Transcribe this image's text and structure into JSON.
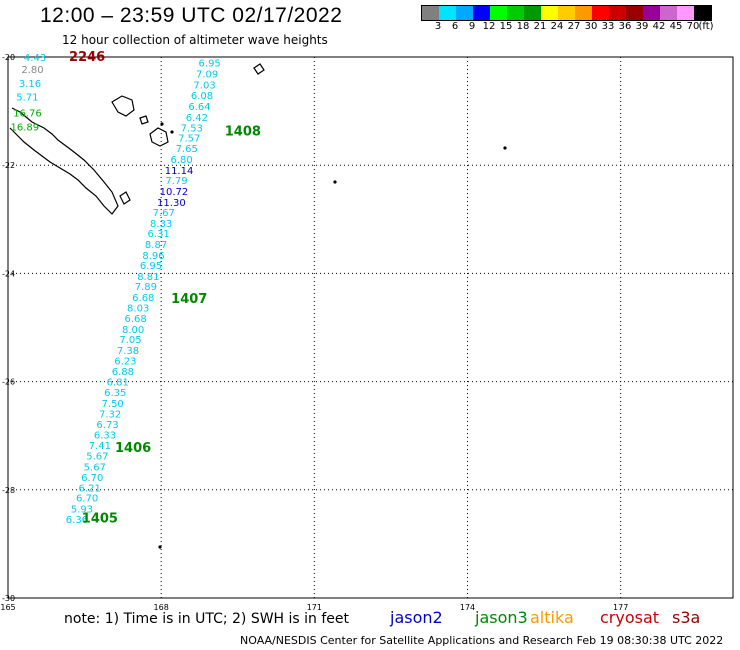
{
  "title": "12:00 – 23:59 UTC 02/17/2022",
  "subtitle": "12 hour collection of altimeter wave heights",
  "scale": {
    "colors": [
      "#808080",
      "#00e5ff",
      "#00a8ff",
      "#0000ff",
      "#00ff00",
      "#00cc00",
      "#009900",
      "#ffff00",
      "#ffcc00",
      "#ff9900",
      "#ff0000",
      "#cc0000",
      "#990000",
      "#990099",
      "#cc66cc",
      "#ff99ff",
      "#000000"
    ],
    "labels": [
      "3",
      "6",
      "9",
      "12",
      "15",
      "18",
      "21",
      "24",
      "27",
      "30",
      "33",
      "36",
      "39",
      "42",
      "45",
      "70",
      "(ft)"
    ]
  },
  "map": {
    "lat_labels": [
      "-20",
      "-22",
      "-24",
      "-26",
      "-28",
      "-30"
    ],
    "lon_labels": [
      "165",
      "168",
      "171",
      "174",
      "177"
    ],
    "lat_range": [
      -30,
      -20
    ],
    "lon_range": [
      165,
      179.2
    ]
  },
  "observations": [
    {
      "value": "4.43",
      "lat": -20.07,
      "lon": 165.53,
      "color": "#00ccee"
    },
    {
      "value": "2.80",
      "lat": -20.3,
      "lon": 165.48,
      "color": "#888888"
    },
    {
      "value": "3.16",
      "lat": -20.55,
      "lon": 165.43,
      "color": "#00ccee"
    },
    {
      "value": "5.71",
      "lat": -20.8,
      "lon": 165.38,
      "color": "#00ccee"
    },
    {
      "value": "16.76",
      "lat": -21.1,
      "lon": 165.38,
      "color": "#00aa00"
    },
    {
      "value": "16.89",
      "lat": -21.36,
      "lon": 165.33,
      "color": "#00aa00"
    },
    {
      "value": "6.95",
      "lat": -20.18,
      "lon": 168.95,
      "color": "#00ccee"
    },
    {
      "value": "7.09",
      "lat": -20.38,
      "lon": 168.9,
      "color": "#00ccee"
    },
    {
      "value": "7.03",
      "lat": -20.58,
      "lon": 168.85,
      "color": "#00ccee"
    },
    {
      "value": "6.08",
      "lat": -20.78,
      "lon": 168.8,
      "color": "#00ccee"
    },
    {
      "value": "6.64",
      "lat": -20.98,
      "lon": 168.75,
      "color": "#00ccee"
    },
    {
      "value": "6.42",
      "lat": -21.18,
      "lon": 168.7,
      "color": "#00ccee"
    },
    {
      "value": "7.53",
      "lat": -21.38,
      "lon": 168.6,
      "color": "#00ccee"
    },
    {
      "value": "7.57",
      "lat": -21.56,
      "lon": 168.55,
      "color": "#00ccee"
    },
    {
      "value": "7.65",
      "lat": -21.76,
      "lon": 168.5,
      "color": "#00ccee"
    },
    {
      "value": "6.80",
      "lat": -21.96,
      "lon": 168.4,
      "color": "#00ccee"
    },
    {
      "value": "11.14",
      "lat": -22.16,
      "lon": 168.35,
      "color": "#000099"
    },
    {
      "value": "7.79",
      "lat": -22.35,
      "lon": 168.3,
      "color": "#00ccee"
    },
    {
      "value": "10.72",
      "lat": -22.55,
      "lon": 168.25,
      "color": "#0000cc"
    },
    {
      "value": "11.30",
      "lat": -22.75,
      "lon": 168.2,
      "color": "#0000cc"
    },
    {
      "value": "7.67",
      "lat": -22.94,
      "lon": 168.05,
      "color": "#00ccee"
    },
    {
      "value": "8.33",
      "lat": -23.14,
      "lon": 168.0,
      "color": "#00ccee"
    },
    {
      "value": "6.31",
      "lat": -23.33,
      "lon": 167.95,
      "color": "#00ccee"
    },
    {
      "value": "8.87",
      "lat": -23.53,
      "lon": 167.9,
      "color": "#00ccee"
    },
    {
      "value": "8.96",
      "lat": -23.73,
      "lon": 167.85,
      "color": "#00ccee"
    },
    {
      "value": "6.95",
      "lat": -23.92,
      "lon": 167.8,
      "color": "#00ccee"
    },
    {
      "value": "8.81",
      "lat": -24.12,
      "lon": 167.75,
      "color": "#00ccee"
    },
    {
      "value": "7.89",
      "lat": -24.31,
      "lon": 167.7,
      "color": "#00ccee"
    },
    {
      "value": "6.68",
      "lat": -24.51,
      "lon": 167.65,
      "color": "#00ccee"
    },
    {
      "value": "8.03",
      "lat": -24.7,
      "lon": 167.55,
      "color": "#00ccee"
    },
    {
      "value": "6.68",
      "lat": -24.9,
      "lon": 167.5,
      "color": "#00ccee"
    },
    {
      "value": "8.00",
      "lat": -25.1,
      "lon": 167.45,
      "color": "#00ccee"
    },
    {
      "value": "7.05",
      "lat": -25.29,
      "lon": 167.4,
      "color": "#00ccee"
    },
    {
      "value": "7.38",
      "lat": -25.49,
      "lon": 167.35,
      "color": "#00ccee"
    },
    {
      "value": "6.23",
      "lat": -25.68,
      "lon": 167.3,
      "color": "#00ccee"
    },
    {
      "value": "6.88",
      "lat": -25.88,
      "lon": 167.25,
      "color": "#00ccee"
    },
    {
      "value": "6.81",
      "lat": -26.07,
      "lon": 167.15,
      "color": "#00ccee"
    },
    {
      "value": "6.35",
      "lat": -26.27,
      "lon": 167.1,
      "color": "#00ccee"
    },
    {
      "value": "7.50",
      "lat": -26.47,
      "lon": 167.05,
      "color": "#00ccee"
    },
    {
      "value": "7.32",
      "lat": -26.66,
      "lon": 167.0,
      "color": "#00ccee"
    },
    {
      "value": "6.73",
      "lat": -26.86,
      "lon": 166.95,
      "color": "#00ccee"
    },
    {
      "value": "6.33",
      "lat": -27.05,
      "lon": 166.9,
      "color": "#00ccee"
    },
    {
      "value": "7.41",
      "lat": -27.25,
      "lon": 166.8,
      "color": "#00ccee"
    },
    {
      "value": "5.67",
      "lat": -27.44,
      "lon": 166.75,
      "color": "#00ccee"
    },
    {
      "value": "5.67",
      "lat": -27.64,
      "lon": 166.7,
      "color": "#00ccee"
    },
    {
      "value": "6.70",
      "lat": -27.84,
      "lon": 166.65,
      "color": "#00ccee"
    },
    {
      "value": "6.21",
      "lat": -28.03,
      "lon": 166.6,
      "color": "#00ccee"
    },
    {
      "value": "6.70",
      "lat": -28.22,
      "lon": 166.55,
      "color": "#00ccee"
    },
    {
      "value": "5.93",
      "lat": -28.42,
      "lon": 166.45,
      "color": "#00ccee"
    },
    {
      "value": "6.36",
      "lat": -28.61,
      "lon": 166.35,
      "color": "#00ccee"
    }
  ],
  "pass_labels": [
    {
      "text": "2246",
      "lat": -20.07,
      "lon": 166.55,
      "color": "#990000"
    },
    {
      "text": "1408",
      "lat": -21.45,
      "lon": 169.6,
      "color": "#008800"
    },
    {
      "text": "1407",
      "lat": -24.55,
      "lon": 168.55,
      "color": "#008800"
    },
    {
      "text": "1406",
      "lat": -27.3,
      "lon": 167.45,
      "color": "#008800"
    },
    {
      "text": "1405",
      "lat": -28.6,
      "lon": 166.8,
      "color": "#008800"
    }
  ],
  "note": "note: 1) Time is in UTC; 2) SWH is in feet",
  "legend": [
    {
      "label": "jason2",
      "color": "#0000cc"
    },
    {
      "label": "jason3",
      "color": "#008800"
    },
    {
      "label": "altika",
      "color": "#ff9900"
    },
    {
      "label": "cryosat",
      "color": "#cc0000"
    },
    {
      "label": "s3a",
      "color": "#990000"
    }
  ],
  "footer": "NOAA/NESDIS Center for Satellite Applications and Research    Feb 19 08:30:38 UTC 2022"
}
